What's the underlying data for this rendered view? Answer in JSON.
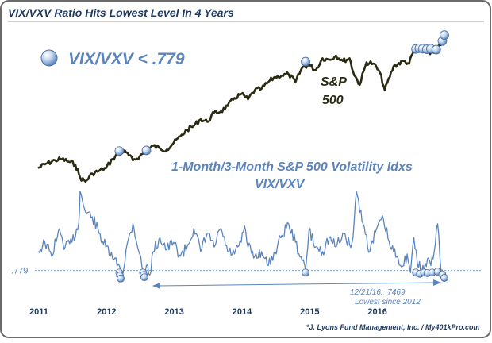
{
  "chart_data": {
    "type": "line",
    "title": "VIX/VXV Ratio Hits Lowest Level In 4 Years",
    "legend_marker_label": "VIX/VXV < .779",
    "x_ticks": [
      "2011",
      "2012",
      "2013",
      "2014",
      "2015",
      "2016"
    ],
    "x_range": [
      2011.0,
      2017.0
    ],
    "threshold": {
      "label": ".779",
      "value": 0.779
    },
    "annotation": {
      "line1": "12/21/16: .7469",
      "line2": "Lowest since 2012"
    },
    "credit": "*J. Lyons Fund Management, Inc. / My401kPro.com",
    "series": [
      {
        "name": "S&P 500",
        "label_line1": "S&P",
        "label_line2": "500",
        "color": "#2b2b14",
        "x": [
          2011.0,
          2011.1,
          2011.25,
          2011.35,
          2011.45,
          2011.55,
          2011.62,
          2011.7,
          2011.8,
          2011.9,
          2012.0,
          2012.1,
          2012.22,
          2012.3,
          2012.4,
          2012.5,
          2012.6,
          2012.7,
          2012.8,
          2012.9,
          2013.0,
          2013.1,
          2013.2,
          2013.3,
          2013.4,
          2013.5,
          2013.6,
          2013.7,
          2013.8,
          2013.9,
          2014.0,
          2014.1,
          2014.2,
          2014.3,
          2014.4,
          2014.5,
          2014.6,
          2014.7,
          2014.8,
          2014.9,
          2015.0,
          2015.1,
          2015.2,
          2015.3,
          2015.4,
          2015.5,
          2015.6,
          2015.65,
          2015.75,
          2015.85,
          2015.95,
          2016.05,
          2016.12,
          2016.25,
          2016.4,
          2016.48,
          2016.55,
          2016.65,
          2016.75,
          2016.85,
          2016.95,
          2017.0
        ],
        "values": [
          1271,
          1300,
          1330,
          1340,
          1320,
          1300,
          1200,
          1170,
          1230,
          1250,
          1270,
          1340,
          1400,
          1390,
          1330,
          1360,
          1400,
          1440,
          1420,
          1410,
          1460,
          1510,
          1560,
          1590,
          1640,
          1620,
          1690,
          1700,
          1740,
          1800,
          1830,
          1790,
          1860,
          1870,
          1920,
          1960,
          1970,
          1980,
          1920,
          2030,
          2050,
          2010,
          2100,
          2090,
          2120,
          2080,
          2100,
          2000,
          1900,
          2070,
          2060,
          1990,
          1860,
          2040,
          2080,
          2060,
          2160,
          2170,
          2150,
          2140,
          2200,
          2270
        ]
      },
      {
        "name": "VIX/VXV",
        "label_line1": "1-Month/3-Month S&P 500 Volatility Idxs",
        "label_line2": "VIX/VXV",
        "color": "#5b84bd",
        "x": [
          2011.0,
          2011.1,
          2011.2,
          2011.3,
          2011.4,
          2011.5,
          2011.6,
          2011.62,
          2011.7,
          2011.8,
          2011.9,
          2012.0,
          2012.1,
          2012.2,
          2012.25,
          2012.3,
          2012.4,
          2012.5,
          2012.55,
          2012.6,
          2012.65,
          2012.7,
          2012.8,
          2012.9,
          2013.0,
          2013.1,
          2013.2,
          2013.3,
          2013.4,
          2013.5,
          2013.6,
          2013.7,
          2013.8,
          2013.9,
          2014.0,
          2014.05,
          2014.1,
          2014.2,
          2014.3,
          2014.35,
          2014.4,
          2014.5,
          2014.6,
          2014.7,
          2014.8,
          2014.9,
          2014.95,
          2015.0,
          2015.1,
          2015.2,
          2015.3,
          2015.4,
          2015.5,
          2015.6,
          2015.65,
          2015.7,
          2015.8,
          2015.9,
          2016.0,
          2016.1,
          2016.2,
          2016.3,
          2016.4,
          2016.45,
          2016.5,
          2016.55,
          2016.6,
          2016.7,
          2016.75,
          2016.8,
          2016.85,
          2016.9,
          2016.95,
          2017.0
        ],
        "values": [
          0.86,
          0.9,
          0.84,
          0.95,
          0.88,
          0.9,
          0.98,
          1.12,
          1.03,
          1.01,
          0.94,
          0.88,
          0.83,
          0.8,
          0.76,
          0.87,
          0.98,
          0.85,
          0.77,
          0.8,
          0.76,
          0.86,
          0.92,
          0.87,
          0.9,
          0.84,
          0.88,
          0.96,
          0.86,
          0.94,
          0.88,
          0.96,
          0.86,
          0.85,
          0.9,
          0.97,
          0.88,
          0.84,
          0.86,
          0.83,
          0.8,
          0.86,
          0.93,
          0.98,
          0.9,
          0.82,
          0.78,
          0.95,
          0.88,
          0.86,
          0.92,
          0.88,
          0.94,
          0.89,
          0.92,
          1.12,
          0.98,
          0.86,
          0.96,
          1.0,
          0.88,
          0.84,
          0.8,
          0.85,
          0.77,
          0.92,
          0.81,
          0.78,
          0.83,
          0.8,
          0.86,
          0.98,
          0.78,
          0.75
        ]
      }
    ],
    "signals_spx": [
      {
        "x": 2012.2,
        "y": 1400
      },
      {
        "x": 2012.6,
        "y": 1405
      },
      {
        "x": 2014.95,
        "y": 2075
      },
      {
        "x": 2016.58,
        "y": 2170
      },
      {
        "x": 2016.63,
        "y": 2175
      },
      {
        "x": 2016.68,
        "y": 2172
      },
      {
        "x": 2016.74,
        "y": 2168
      },
      {
        "x": 2016.8,
        "y": 2172
      },
      {
        "x": 2016.88,
        "y": 2165
      },
      {
        "x": 2016.97,
        "y": 2230
      },
      {
        "x": 2017.0,
        "y": 2275
      }
    ],
    "signals_ratio": [
      {
        "x": 2012.2,
        "y": 0.77
      },
      {
        "x": 2012.21,
        "y": 0.757
      },
      {
        "x": 2012.22,
        "y": 0.744
      },
      {
        "x": 2012.55,
        "y": 0.77
      },
      {
        "x": 2012.56,
        "y": 0.76
      },
      {
        "x": 2012.57,
        "y": 0.75
      },
      {
        "x": 2014.95,
        "y": 0.77
      },
      {
        "x": 2016.58,
        "y": 0.77
      },
      {
        "x": 2016.64,
        "y": 0.765
      },
      {
        "x": 2016.7,
        "y": 0.77
      },
      {
        "x": 2016.75,
        "y": 0.768
      },
      {
        "x": 2016.82,
        "y": 0.77
      },
      {
        "x": 2016.9,
        "y": 0.774
      },
      {
        "x": 2016.97,
        "y": 0.762
      },
      {
        "x": 2017.0,
        "y": 0.7469
      }
    ],
    "colors": {
      "frame": "#6a6a6a",
      "background": "#ffffff",
      "title": "#1f3a5f",
      "accent": "#5b84bd",
      "spx": "#2b2b14"
    }
  }
}
